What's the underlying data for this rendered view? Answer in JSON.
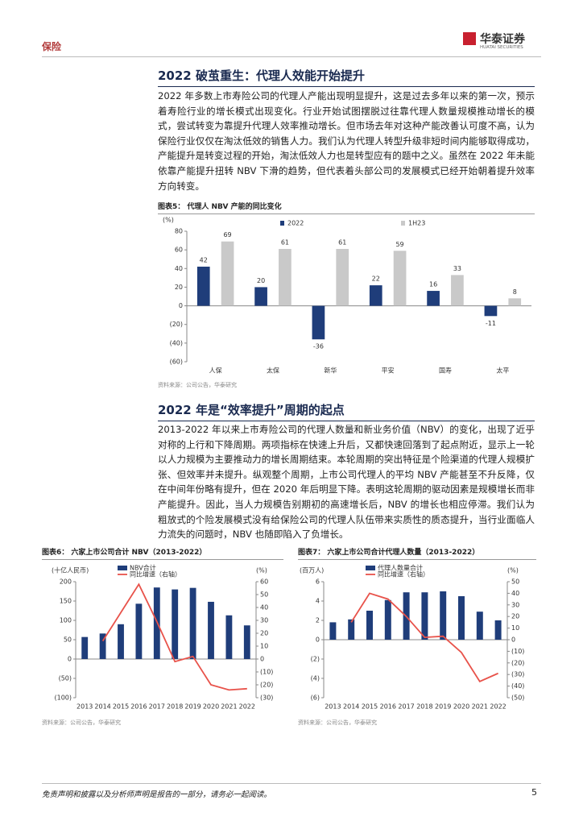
{
  "header": {
    "section": "保险",
    "brand": "华泰证券",
    "brand_en": "HUATAI SECURITIES"
  },
  "heading1": "2022 破茧重生：代理人效能开始提升",
  "paragraph1": "2022 年多数上市寿险公司的代理人产能出现明显提升，这是过去多年以来的第一次，预示着寿险行业的增长模式出现变化。行业开始试图摆脱过往靠代理人数量规模推动增长的模式，尝试转变为靠提升代理人效率推动增长。但市场去年对这种产能改善认可度不高，认为保险行业仅仅在淘汰低效的销售人力。我们认为代理人转型升级非短时间内能够取得成功，产能提升是转变过程的开始，淘汰低效人力也是转型应有的题中之义。虽然在 2022 年未能依靠产能提升扭转 NBV 下滑的趋势，但代表着头部公司的发展模式已经开始朝着提升效率方向转变。",
  "heading2": "2022 年是“效率提升”周期的起点",
  "paragraph2": "2013-2022 年以来上市寿险公司的代理人数量和新业务价值（NBV）的变化，出现了近乎对称的上行和下降周期。两项指标在快速上升后，又都快速回落到了起点附近，显示上一轮以人力规模为主要推动力的增长周期结束。本轮周期的突出特征是个险渠道的代理人规模扩张、但效率并未提升。纵观整个周期，上市公司代理人的平均 NBV 产能甚至不升反降，仅在中间年份略有提升，但在 2020 年后明显下降。表明这轮周期的驱动因素是规模增长而非产能提升。因此，当人力规模告别期初的高速增长后，NBV 的增长也相应停滞。我们认为粗放式的个险发展模式没有给保险公司的代理人队伍带来实质性的质态提升，当行业面临人力流失的问题时，NBV 也随即陷入了负增长。",
  "footer": {
    "disclaimer": "免责声明和披露以及分析师声明是报告的一部分，请务必一起阅读。",
    "page": "5"
  },
  "chart_data": [
    {
      "type": "bar",
      "title": "图表5：  代理人 NBV 产能的同比变化",
      "source": "资料来源：公司公告，华泰研究",
      "y_label": "(%)",
      "categories": [
        "人保",
        "太保",
        "新华",
        "平安",
        "国寿",
        "太平"
      ],
      "series": [
        {
          "name": "2022",
          "color": "#1f3d7a",
          "values": [
            42,
            20,
            -36,
            22,
            16,
            -11
          ]
        },
        {
          "name": "1H23",
          "color": "#c9c9c9",
          "values": [
            69,
            61,
            61,
            59,
            33,
            8
          ]
        }
      ],
      "ylim": [
        -60,
        80
      ],
      "yticks": [
        {
          "value": -60,
          "label": "(60)"
        },
        {
          "value": -40,
          "label": "(40)"
        },
        {
          "value": -20,
          "label": "(20)"
        },
        0,
        20,
        40,
        60,
        80
      ],
      "data_labels": true,
      "legend": "top"
    },
    {
      "type": "bar_line",
      "title": "图表6：  六家上市公司合计 NBV（2013-2022）",
      "source": "资料来源：公司公告，华泰研究",
      "y_label": "(十亿人民币)",
      "y2_label": "(%)",
      "categories": [
        "2013",
        "2014",
        "2015",
        "2016",
        "2017",
        "2018",
        "2019",
        "2020",
        "2021",
        "2022"
      ],
      "series": [
        {
          "name": "NBV合计",
          "type": "bar",
          "color": "#1f3d7a",
          "values": [
            57,
            66,
            90,
            143,
            185,
            180,
            184,
            148,
            113,
            87
          ]
        },
        {
          "name": "同比增速（右轴）",
          "type": "line",
          "axis": "y2",
          "color": "#e8524a",
          "values": [
            null,
            14,
            36,
            58,
            29,
            -2,
            2,
            -20,
            -24,
            -23
          ]
        }
      ],
      "ylim": [
        -100,
        200
      ],
      "yticks": [
        {
          "value": -100,
          "label": "(100)"
        },
        {
          "value": -50,
          "label": "(50)"
        },
        0,
        50,
        100,
        150,
        200
      ],
      "y2lim": [
        -30,
        60
      ],
      "y2ticks": [
        {
          "value": -30,
          "label": "(30)"
        },
        {
          "value": -20,
          "label": "(20)"
        },
        {
          "value": -10,
          "label": "(10)"
        },
        0,
        10,
        20,
        30,
        40,
        50,
        60
      ],
      "legend": "top"
    },
    {
      "type": "bar_line",
      "title": "图表7：  六家上市公司合计代理人数量（2013-2022）",
      "source": "资料来源：公司公告，华泰研究",
      "y_label": "(百万人)",
      "y2_label": "(%)",
      "categories": [
        "2013",
        "2014",
        "2015",
        "2016",
        "2017",
        "2018",
        "2019",
        "2020",
        "2021",
        "2022"
      ],
      "series": [
        {
          "name": "代理人数量合计",
          "type": "bar",
          "color": "#1f3d7a",
          "values": [
            1.8,
            2.1,
            3.0,
            4.1,
            4.9,
            4.9,
            5.0,
            4.5,
            2.9,
            2.0
          ]
        },
        {
          "name": "同比增速（右轴）",
          "type": "line",
          "axis": "y2",
          "color": "#e8524a",
          "values": [
            null,
            15,
            40,
            35,
            20,
            2,
            3,
            -11,
            -36,
            -29
          ]
        }
      ],
      "ylim": [
        -6,
        6
      ],
      "yticks": [
        {
          "value": -6,
          "label": "(6)"
        },
        {
          "value": -4,
          "label": "(4)"
        },
        {
          "value": -2,
          "label": "(2)"
        },
        0,
        2,
        4,
        6
      ],
      "y2lim": [
        -50,
        50
      ],
      "y2ticks": [
        {
          "value": -50,
          "label": "(50)"
        },
        {
          "value": -40,
          "label": "(40)"
        },
        {
          "value": -30,
          "label": "(30)"
        },
        {
          "value": -20,
          "label": "(20)"
        },
        {
          "value": -10,
          "label": "(10)"
        },
        0,
        10,
        20,
        30,
        40,
        50
      ],
      "legend": "top"
    }
  ]
}
